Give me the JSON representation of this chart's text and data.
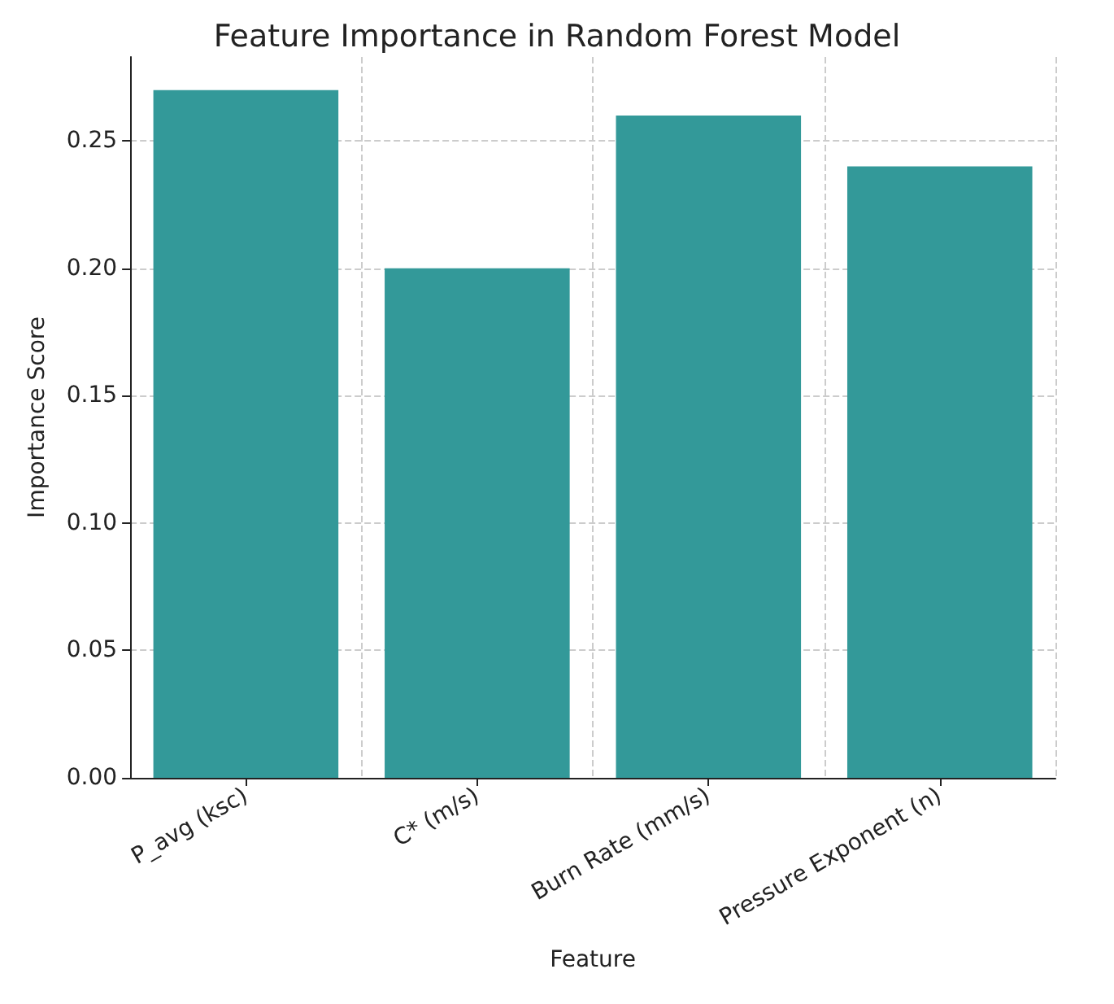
{
  "chart_data": {
    "type": "bar",
    "title": "Feature Importance in Random Forest Model",
    "xlabel": "Feature",
    "ylabel": "Importance Score",
    "categories": [
      "P_avg (ksc)",
      "C* (m/s)",
      "Burn Rate (mm/s)",
      "Pressure Exponent (n)"
    ],
    "values": [
      0.27,
      0.2,
      0.26,
      0.24
    ],
    "color": "#339999",
    "ylim": [
      0,
      0.283
    ],
    "yticks": [
      {
        "value": 0,
        "label": "0.00"
      },
      {
        "value": 0.05,
        "label": "0.05"
      },
      {
        "value": 0.1,
        "label": "0.10"
      },
      {
        "value": 0.15,
        "label": "0.15"
      },
      {
        "value": 0.2,
        "label": "0.20"
      },
      {
        "value": 0.25,
        "label": "0.25"
      }
    ],
    "grid": true
  }
}
